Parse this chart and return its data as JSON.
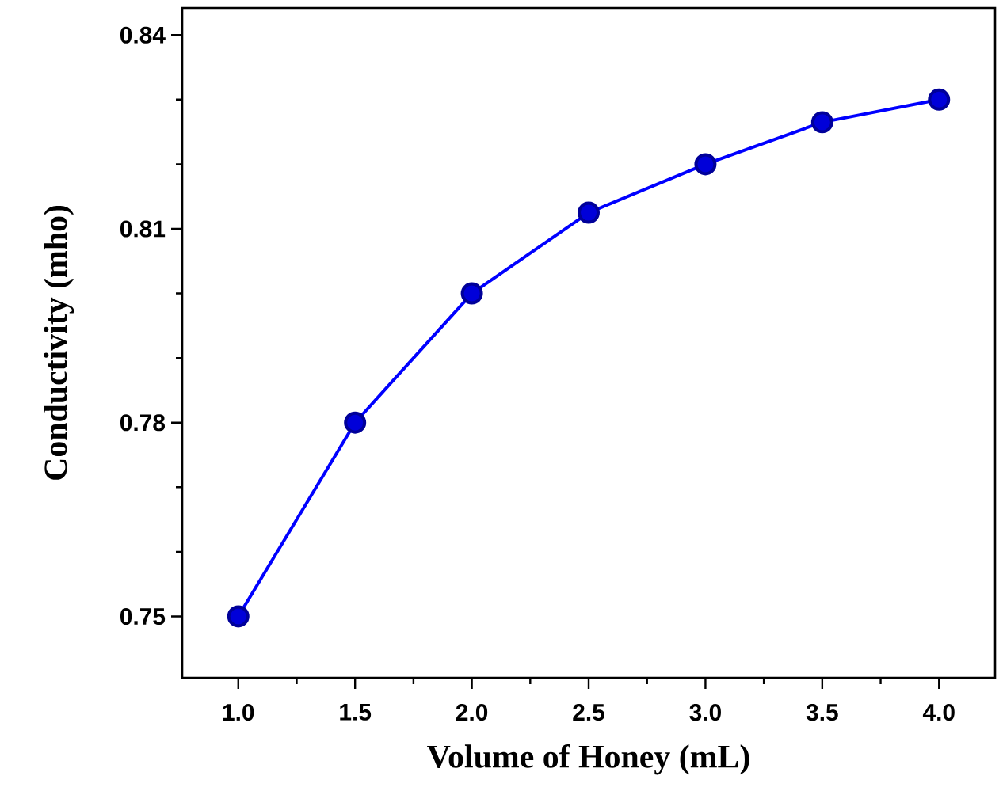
{
  "chart_data": {
    "type": "line",
    "xlabel": "Volume of Honey (mL)",
    "ylabel": "Conductivity (mho)",
    "x": [
      1.0,
      1.5,
      2.0,
      2.5,
      3.0,
      3.5,
      4.0
    ],
    "series": [
      {
        "color": "#0000ff",
        "values": [
          0.75,
          0.78,
          0.8,
          0.8125,
          0.82,
          0.8265,
          0.83
        ]
      }
    ],
    "xlim": [
      0.76,
      4.24
    ],
    "ylim": [
      0.7405,
      0.8442
    ],
    "xticks": [
      {
        "value": 1.0,
        "label": "1.0"
      },
      {
        "value": 1.5,
        "label": "1.5"
      },
      {
        "value": 2.0,
        "label": "2.0"
      },
      {
        "value": 2.5,
        "label": "2.5"
      },
      {
        "value": 3.0,
        "label": "3.0"
      },
      {
        "value": 3.5,
        "label": "3.5"
      },
      {
        "value": 4.0,
        "label": "4.0"
      }
    ],
    "yticks": [
      0.75,
      0.78,
      0.81,
      0.84
    ],
    "marker": "circle",
    "line_style": "solid",
    "grid": false
  }
}
